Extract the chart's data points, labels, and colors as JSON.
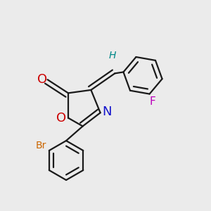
{
  "background_color": "#ebebeb",
  "bond_color": "#1a1a1a",
  "bond_width": 1.6,
  "fig_width": 3.0,
  "fig_height": 3.0,
  "dpi": 100,
  "xlim": [
    0,
    1
  ],
  "ylim": [
    0,
    1
  ],
  "colors": {
    "O": "#cc0000",
    "N": "#1414cc",
    "Br": "#cc6600",
    "F": "#bb00bb",
    "H": "#008888",
    "C": "#1a1a1a"
  }
}
